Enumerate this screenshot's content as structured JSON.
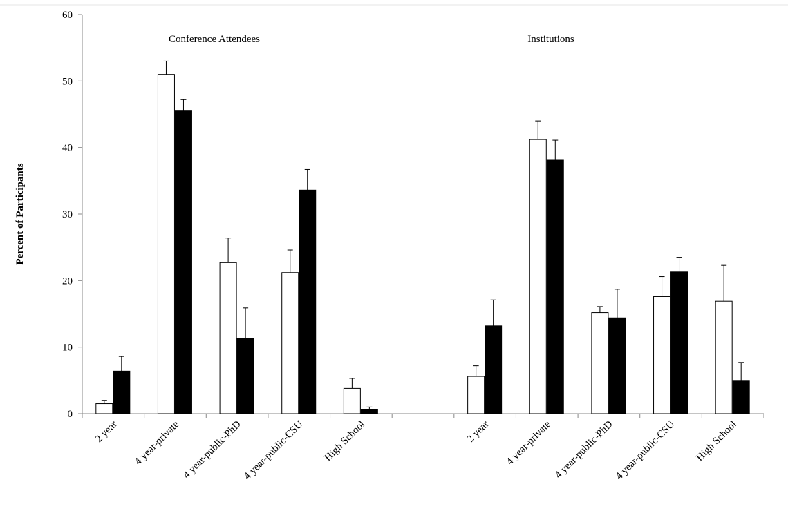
{
  "chart_data": {
    "type": "bar",
    "ylabel": "Percent of Participants",
    "annotations": [
      "Conference Attendees",
      "Institutions"
    ],
    "categories": [
      "2 year",
      "4 year-private",
      "4 year-public-PhD",
      "4 year-public-CSU",
      "High School",
      null,
      "2 year",
      "4 year-private",
      "4 year-public-PhD",
      "4 year-public-CSU",
      "High School"
    ],
    "series": [
      {
        "color": "#ffffff",
        "values": [
          1.5,
          51,
          22.7,
          21.2,
          3.8,
          null,
          5.6,
          41.2,
          15.2,
          17.6,
          16.9
        ],
        "errors": [
          0.5,
          2,
          3.7,
          3.4,
          1.5,
          null,
          1.6,
          2.8,
          0.9,
          3,
          5.4
        ]
      },
      {
        "color": "#000000",
        "values": [
          6.4,
          45.5,
          11.3,
          33.6,
          0.6,
          null,
          13.2,
          38.2,
          14.4,
          21.3,
          4.9
        ],
        "errors": [
          2.2,
          1.7,
          4.6,
          3.1,
          0.4,
          null,
          3.9,
          2.9,
          4.3,
          2.2,
          2.8
        ]
      }
    ],
    "ylim": [
      0,
      60
    ],
    "yticks": [
      0,
      10,
      20,
      30,
      40,
      50,
      60
    ]
  }
}
